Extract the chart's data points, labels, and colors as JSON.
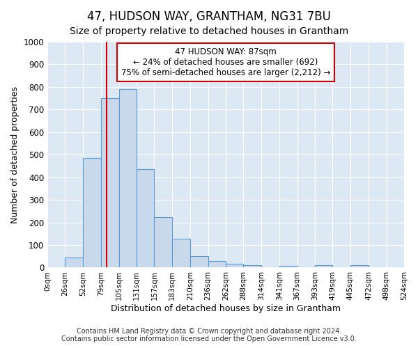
{
  "title": "47, HUDSON WAY, GRANTHAM, NG31 7BU",
  "subtitle": "Size of property relative to detached houses in Grantham",
  "xlabel": "Distribution of detached houses by size in Grantham",
  "ylabel": "Number of detached properties",
  "bin_edges": [
    0,
    26,
    52,
    79,
    105,
    131,
    157,
    183,
    210,
    236,
    262,
    288,
    314,
    341,
    367,
    393,
    419,
    445,
    472,
    498,
    524
  ],
  "bar_heights": [
    0,
    45,
    485,
    750,
    790,
    435,
    222,
    128,
    52,
    30,
    18,
    12,
    0,
    9,
    0,
    12,
    0,
    12,
    0,
    0
  ],
  "bar_color": "#c9d9ec",
  "bar_edgecolor": "#5b9bd5",
  "property_size": 87,
  "vline_color": "#cc0000",
  "annotation_text": "47 HUDSON WAY: 87sqm\n← 24% of detached houses are smaller (692)\n75% of semi-detached houses are larger (2,212) →",
  "annotation_box_facecolor": "#ffffff",
  "annotation_box_edgecolor": "#cc0000",
  "ylim": [
    0,
    1000
  ],
  "yticks": [
    0,
    100,
    200,
    300,
    400,
    500,
    600,
    700,
    800,
    900,
    1000
  ],
  "xtick_labels": [
    "0sqm",
    "26sqm",
    "52sqm",
    "79sqm",
    "105sqm",
    "131sqm",
    "157sqm",
    "183sqm",
    "210sqm",
    "236sqm",
    "262sqm",
    "288sqm",
    "314sqm",
    "341sqm",
    "367sqm",
    "393sqm",
    "419sqm",
    "445sqm",
    "472sqm",
    "498sqm",
    "524sqm"
  ],
  "footer_line1": "Contains HM Land Registry data © Crown copyright and database right 2024.",
  "footer_line2": "Contains public sector information licensed under the Open Government Licence v3.0.",
  "bg_color": "#ffffff",
  "plot_bg_color": "#dce9f5",
  "grid_color": "#ffffff",
  "title_fontsize": 12,
  "subtitle_fontsize": 10,
  "xlabel_fontsize": 9,
  "ylabel_fontsize": 9,
  "footer_fontsize": 7
}
